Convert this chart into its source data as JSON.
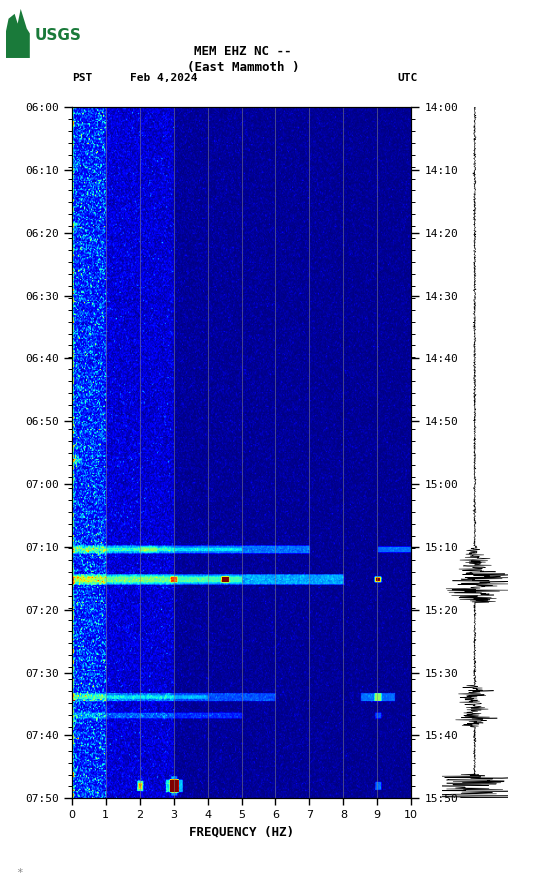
{
  "title_line1": "MEM EHZ NC --",
  "title_line2": "(East Mammoth )",
  "date_label": "Feb 4,2024",
  "tz_left": "PST",
  "tz_right": "UTC",
  "freq_min": 0,
  "freq_max": 10,
  "freq_label": "FREQUENCY (HZ)",
  "freq_ticks": [
    0,
    1,
    2,
    3,
    4,
    5,
    6,
    7,
    8,
    9,
    10
  ],
  "time_ticks_left": [
    "06:00",
    "06:10",
    "06:20",
    "06:30",
    "06:40",
    "06:50",
    "07:00",
    "07:10",
    "07:20",
    "07:30",
    "07:40",
    "07:50"
  ],
  "time_ticks_right": [
    "14:00",
    "14:10",
    "14:20",
    "14:30",
    "14:40",
    "14:50",
    "15:00",
    "15:10",
    "15:20",
    "15:30",
    "15:40",
    "15:50"
  ],
  "n_time": 600,
  "n_freq": 500,
  "background_color": "#ffffff",
  "colormap": "jet",
  "grid_color": "#888888",
  "grid_alpha": 0.6,
  "vert_lines_freq": [
    1,
    2,
    3,
    4,
    5,
    6,
    7,
    8,
    9
  ],
  "seismogram_color": "#000000",
  "logo_color": "#1a7a3a",
  "font_family": "monospace",
  "base_noise_level": 0.18,
  "col0_boost": 2.5,
  "col1_boost": 1.8,
  "col2_boost": 1.4
}
